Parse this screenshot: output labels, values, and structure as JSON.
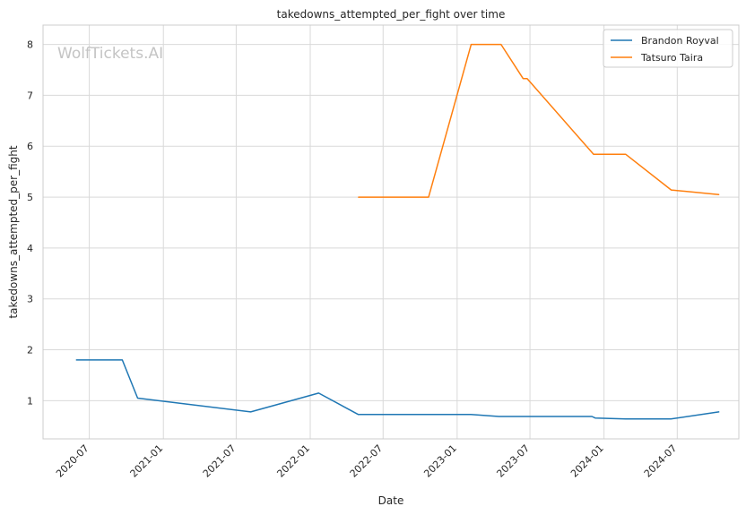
{
  "chart_data": {
    "type": "line",
    "title": "takedowns_attempted_per_fight over time",
    "xlabel": "Date",
    "ylabel": "takedowns_attempted_per_fight",
    "watermark": "WolfTickets.AI",
    "x_ticks": [
      "2020-07",
      "2021-01",
      "2021-07",
      "2022-01",
      "2022-07",
      "2023-01",
      "2023-07",
      "2024-01",
      "2024-07"
    ],
    "y_ticks": [
      "1",
      "2",
      "3",
      "4",
      "5",
      "6",
      "7",
      "8"
    ],
    "xlim": [
      "2020-03-08",
      "2024-12-01"
    ],
    "ylim": [
      0.25,
      8.38
    ],
    "grid": true,
    "legend_position": "upper right",
    "series": [
      {
        "name": "Brandon Royval",
        "color": "#1f77b4",
        "points": [
          [
            "2020-05-30",
            1.8
          ],
          [
            "2020-09-21",
            1.8
          ],
          [
            "2020-10-29",
            1.05
          ],
          [
            "2021-08-06",
            0.78
          ],
          [
            "2022-01-22",
            1.15
          ],
          [
            "2022-04-30",
            0.73
          ],
          [
            "2023-02-04",
            0.73
          ],
          [
            "2023-04-15",
            0.69
          ],
          [
            "2023-12-02",
            0.69
          ],
          [
            "2023-12-10",
            0.66
          ],
          [
            "2024-02-24",
            0.64
          ],
          [
            "2024-06-15",
            0.64
          ],
          [
            "2024-10-12",
            0.78
          ]
        ]
      },
      {
        "name": "Tatsuro Taira",
        "color": "#ff7f0e",
        "points": [
          [
            "2022-05-01",
            5.0
          ],
          [
            "2022-10-22",
            5.0
          ],
          [
            "2023-02-05",
            8.0
          ],
          [
            "2023-04-20",
            8.0
          ],
          [
            "2023-06-14",
            7.33
          ],
          [
            "2023-06-24",
            7.33
          ],
          [
            "2023-12-06",
            5.84
          ],
          [
            "2024-02-24",
            5.84
          ],
          [
            "2024-06-16",
            5.14
          ],
          [
            "2024-10-12",
            5.05
          ]
        ]
      }
    ]
  }
}
